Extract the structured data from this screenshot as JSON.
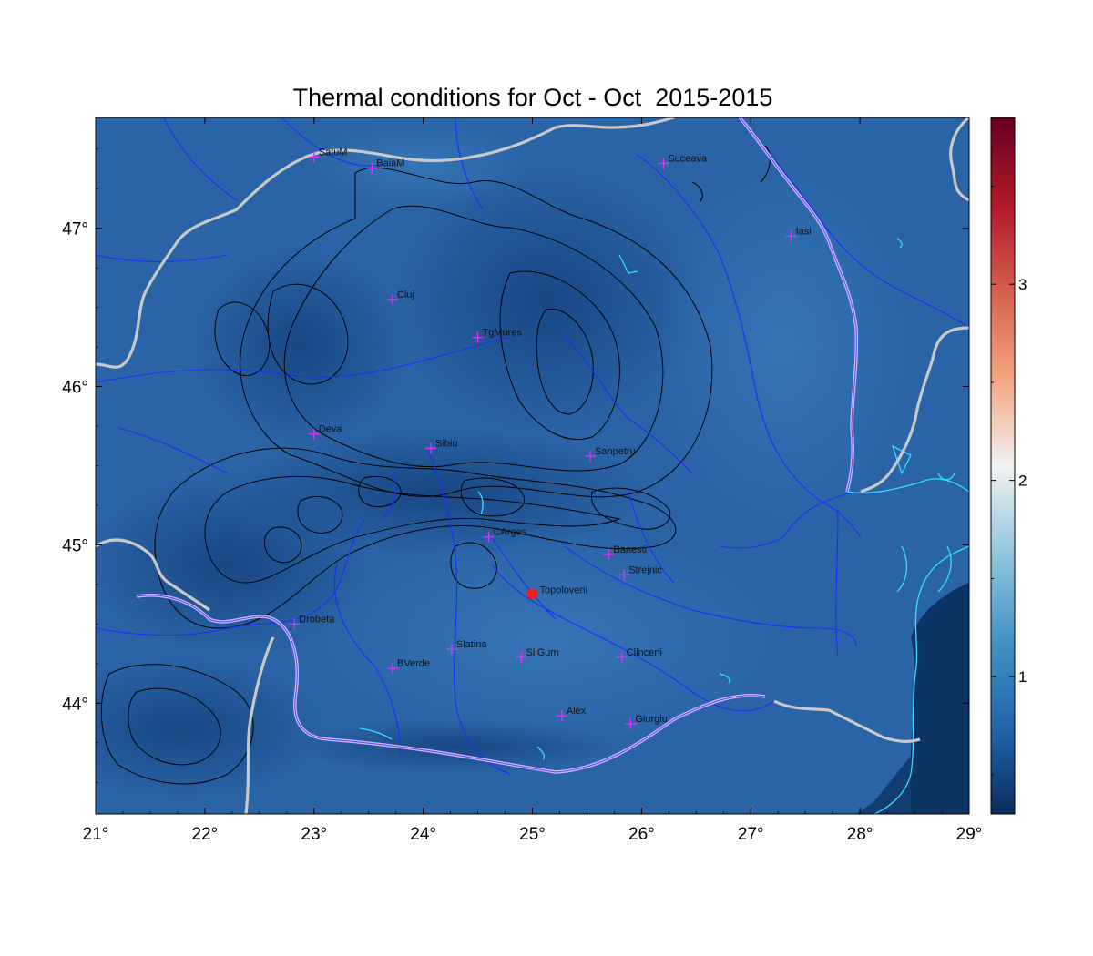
{
  "title": "Thermal conditions for Oct - Oct  2015-2015",
  "map": {
    "lon_range": [
      21,
      29
    ],
    "lat_range": [
      43.3,
      47.7
    ],
    "x_ticks": [
      {
        "value": 21,
        "label": "21°"
      },
      {
        "value": 22,
        "label": "22°"
      },
      {
        "value": 23,
        "label": "23°"
      },
      {
        "value": 24,
        "label": "24°"
      },
      {
        "value": 25,
        "label": "25°"
      },
      {
        "value": 26,
        "label": "26°"
      },
      {
        "value": 27,
        "label": "27°"
      },
      {
        "value": 28,
        "label": "28°"
      },
      {
        "value": 29,
        "label": "29°"
      }
    ],
    "y_ticks": [
      {
        "value": 44,
        "label": "44°"
      },
      {
        "value": 45,
        "label": "45°"
      },
      {
        "value": 46,
        "label": "46°"
      },
      {
        "value": 47,
        "label": "47°"
      }
    ],
    "cities": [
      {
        "name": "SatuM",
        "lon": 23.0,
        "lat": 47.45
      },
      {
        "name": "BaiaM",
        "lon": 23.53,
        "lat": 47.38
      },
      {
        "name": "Suceava",
        "lon": 26.2,
        "lat": 47.41
      },
      {
        "name": "Iasi",
        "lon": 27.37,
        "lat": 46.95
      },
      {
        "name": "Cluj",
        "lon": 23.72,
        "lat": 46.55
      },
      {
        "name": "TgMures",
        "lon": 24.5,
        "lat": 46.31
      },
      {
        "name": "Deva",
        "lon": 23.0,
        "lat": 45.7
      },
      {
        "name": "Sibiu",
        "lon": 24.07,
        "lat": 45.61
      },
      {
        "name": "Sanpetru",
        "lon": 25.53,
        "lat": 45.56
      },
      {
        "name": "CArges",
        "lon": 24.6,
        "lat": 45.05
      },
      {
        "name": "Banesti",
        "lon": 25.7,
        "lat": 44.94
      },
      {
        "name": "Strejnic",
        "lon": 25.84,
        "lat": 44.81
      },
      {
        "name": "Drobeta",
        "lon": 22.82,
        "lat": 44.5
      },
      {
        "name": "Slatina",
        "lon": 24.26,
        "lat": 44.34
      },
      {
        "name": "SilGum",
        "lon": 24.9,
        "lat": 44.29
      },
      {
        "name": "Clinceni",
        "lon": 25.82,
        "lat": 44.29
      },
      {
        "name": "BVerde",
        "lon": 23.72,
        "lat": 44.22
      },
      {
        "name": "Alex",
        "lon": 25.27,
        "lat": 43.92
      },
      {
        "name": "Giurgiu",
        "lon": 25.9,
        "lat": 43.87
      }
    ],
    "highlight_point": {
      "name": "Topoloveni",
      "lon": 25.0,
      "lat": 44.69,
      "color": "#ff1a1a"
    },
    "colors": {
      "field_base": "#2a64a6",
      "country_border": "#c8c8c8",
      "river": "#1a2fff",
      "water": "#33ddff",
      "contour": "#000000",
      "marker": "#dd33ff",
      "danube": "#d8b7ff"
    }
  },
  "colorbar": {
    "min": 0.3,
    "max": 3.85,
    "ticks": [
      {
        "value": 1,
        "label": "1"
      },
      {
        "value": 2,
        "label": "2"
      },
      {
        "value": 3,
        "label": "3"
      }
    ],
    "stops": [
      "#0b2c5e",
      "#2166ac",
      "#4393c3",
      "#92c5de",
      "#f2f2f2",
      "#f4a582",
      "#d6604d",
      "#b2182b",
      "#67001f"
    ]
  }
}
